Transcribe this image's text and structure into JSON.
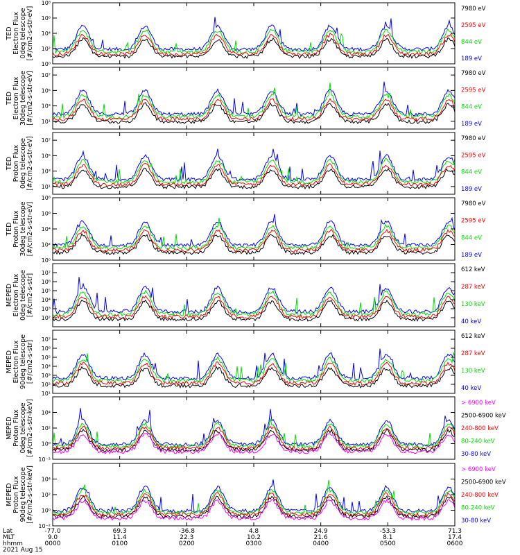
{
  "figure": {
    "date_label": "2021 Aug 15",
    "bottom_axis": {
      "row_labels": [
        "Lat",
        "MLT",
        "hhmm"
      ],
      "columns": [
        [
          "-77.0",
          "9.0",
          "0000"
        ],
        [
          "69.3",
          "11.4",
          "0100"
        ],
        [
          "-36.8",
          "22.3",
          "0200"
        ],
        [
          "4.8",
          "10.2",
          "0300"
        ],
        [
          "24.9",
          "21.6",
          "0400"
        ],
        [
          "-53.3",
          "8.1",
          "0500"
        ],
        [
          "71.3",
          "17.4",
          "0600"
        ]
      ]
    }
  },
  "chart_data": [
    {
      "type": "line",
      "scale": "log",
      "title_lines": [
        "TED",
        "Electron Flux",
        "0deg telescope",
        "[#/cm2-s-str-eV]"
      ],
      "ylim": [
        1,
        100000000
      ],
      "y_ticks": [
        {
          "v": 1,
          "label": "10⁰"
        },
        {
          "v": 100,
          "label": "10²"
        },
        {
          "v": 10000,
          "label": "10⁴"
        },
        {
          "v": 1000000,
          "label": "10⁶"
        },
        {
          "v": 100000000,
          "label": "10⁸"
        }
      ],
      "legend": [
        {
          "label": "7980 eV",
          "color": "#000000"
        },
        {
          "label": "2595 eV",
          "color": "#ff0000"
        },
        {
          "label": "844 eV",
          "color": "#00dd00"
        },
        {
          "label": "189 eV",
          "color": "#0000ff"
        }
      ]
    },
    {
      "type": "line",
      "scale": "log",
      "title_lines": [
        "TED",
        "Electron Flux",
        "30deg telescope",
        "[#/cm2-s-str-eV]"
      ],
      "ylim": [
        1,
        100000000
      ],
      "y_ticks": [
        {
          "v": 10,
          "label": "10¹"
        },
        {
          "v": 1000,
          "label": "10³"
        },
        {
          "v": 100000,
          "label": "10⁵"
        },
        {
          "v": 10000000,
          "label": "10⁷"
        }
      ],
      "legend": [
        {
          "label": "7980 eV",
          "color": "#000000"
        },
        {
          "label": "2595 eV",
          "color": "#ff0000"
        },
        {
          "label": "844 eV",
          "color": "#00dd00"
        },
        {
          "label": "189 eV",
          "color": "#0000ff"
        }
      ]
    },
    {
      "type": "line",
      "scale": "log",
      "title_lines": [
        "TED",
        "Proton Flux",
        "0deg telescope",
        "[#/cm2-s-str-eV]"
      ],
      "ylim": [
        1,
        100000000
      ],
      "y_ticks": [
        {
          "v": 10,
          "label": "10¹"
        },
        {
          "v": 1000,
          "label": "10³"
        },
        {
          "v": 100000,
          "label": "10⁵"
        },
        {
          "v": 10000000,
          "label": "10⁷"
        }
      ],
      "legend": [
        {
          "label": "7980 eV",
          "color": "#000000"
        },
        {
          "label": "2595 eV",
          "color": "#ff0000"
        },
        {
          "label": "844 eV",
          "color": "#00dd00"
        },
        {
          "label": "189 eV",
          "color": "#0000ff"
        }
      ]
    },
    {
      "type": "line",
      "scale": "log",
      "title_lines": [
        "TED",
        "Proton Flux",
        "30deg telescope",
        "[#/cm2-s-str-eV]"
      ],
      "ylim": [
        1,
        100000000
      ],
      "y_ticks": [
        {
          "v": 1,
          "label": "10⁰"
        },
        {
          "v": 100,
          "label": "10²"
        },
        {
          "v": 10000,
          "label": "10⁴"
        },
        {
          "v": 1000000,
          "label": "10⁶"
        },
        {
          "v": 100000000,
          "label": "10⁸"
        }
      ],
      "legend": [
        {
          "label": "7980 eV",
          "color": "#000000"
        },
        {
          "label": "2595 eV",
          "color": "#ff0000"
        },
        {
          "label": "844 eV",
          "color": "#00dd00"
        },
        {
          "label": "189 eV",
          "color": "#0000ff"
        }
      ]
    },
    {
      "type": "line",
      "scale": "log",
      "title_lines": [
        "MEPED",
        "Electron Flux",
        "0deg telescope",
        "[#/cm2-s-str]"
      ],
      "ylim": [
        10,
        100000000
      ],
      "y_ticks": [
        {
          "v": 100,
          "label": "10²"
        },
        {
          "v": 1000,
          "label": "10³"
        },
        {
          "v": 10000,
          "label": "10⁴"
        },
        {
          "v": 100000,
          "label": "10⁵"
        },
        {
          "v": 1000000,
          "label": "10⁶"
        },
        {
          "v": 10000000,
          "label": "10⁷"
        }
      ],
      "legend": [
        {
          "label": "612 keV",
          "color": "#000000"
        },
        {
          "label": "287 keV",
          "color": "#ff0000"
        },
        {
          "label": "130 keV",
          "color": "#00dd00"
        },
        {
          "label": "40 keV",
          "color": "#0000ff"
        }
      ]
    },
    {
      "type": "line",
      "scale": "log",
      "title_lines": [
        "MEPED",
        "Electron Flux",
        "90deg telescope",
        "[#/cm2-s-str]"
      ],
      "ylim": [
        10,
        100000000
      ],
      "y_ticks": [
        {
          "v": 10,
          "label": "10¹"
        },
        {
          "v": 100,
          "label": "10²"
        },
        {
          "v": 1000,
          "label": "10³"
        },
        {
          "v": 10000,
          "label": "10⁴"
        },
        {
          "v": 100000,
          "label": "10⁵"
        },
        {
          "v": 1000000,
          "label": "10⁶"
        },
        {
          "v": 10000000,
          "label": "10⁷"
        }
      ],
      "legend": [
        {
          "label": "612 keV",
          "color": "#000000"
        },
        {
          "label": "287 keV",
          "color": "#ff0000"
        },
        {
          "label": "130 keV",
          "color": "#00dd00"
        },
        {
          "label": "40 keV",
          "color": "#0000ff"
        }
      ]
    },
    {
      "type": "line",
      "scale": "log",
      "title_lines": [
        "MEPED",
        "Proton Flux",
        "0deg telescope",
        "[#/cm2-s-str-keV]"
      ],
      "ylim": [
        0.01,
        1000000
      ],
      "y_ticks": [
        {
          "v": 0.01,
          "label": "10⁻²"
        },
        {
          "v": 1,
          "label": "10⁰"
        },
        {
          "v": 100,
          "label": "10²"
        },
        {
          "v": 10000,
          "label": "10⁴"
        }
      ],
      "legend": [
        {
          "label": "> 6900 keV",
          "color": "#ff00ff"
        },
        {
          "label": "2500-6900 keV",
          "color": "#000000"
        },
        {
          "label": "240-800 keV",
          "color": "#ff0000"
        },
        {
          "label": "80-240 keV",
          "color": "#00dd00"
        },
        {
          "label": "30-80 keV",
          "color": "#0000ff"
        }
      ]
    },
    {
      "type": "line",
      "scale": "log",
      "title_lines": [
        "MEPED",
        "Proton Flux",
        "90deg telescope",
        "[#/cm2-s-str-keV]"
      ],
      "ylim": [
        0.01,
        1000000
      ],
      "y_ticks": [
        {
          "v": 0.01,
          "label": "10⁻²"
        },
        {
          "v": 1,
          "label": "10⁰"
        },
        {
          "v": 100,
          "label": "10²"
        },
        {
          "v": 10000,
          "label": "10⁴"
        }
      ],
      "legend": [
        {
          "label": "> 6900 keV",
          "color": "#ff00ff"
        },
        {
          "label": "2500-6900 keV",
          "color": "#000000"
        },
        {
          "label": "240-800 keV",
          "color": "#ff0000"
        },
        {
          "label": "80-240 keV",
          "color": "#00dd00"
        },
        {
          "label": "30-80 keV",
          "color": "#0000ff"
        }
      ]
    }
  ]
}
